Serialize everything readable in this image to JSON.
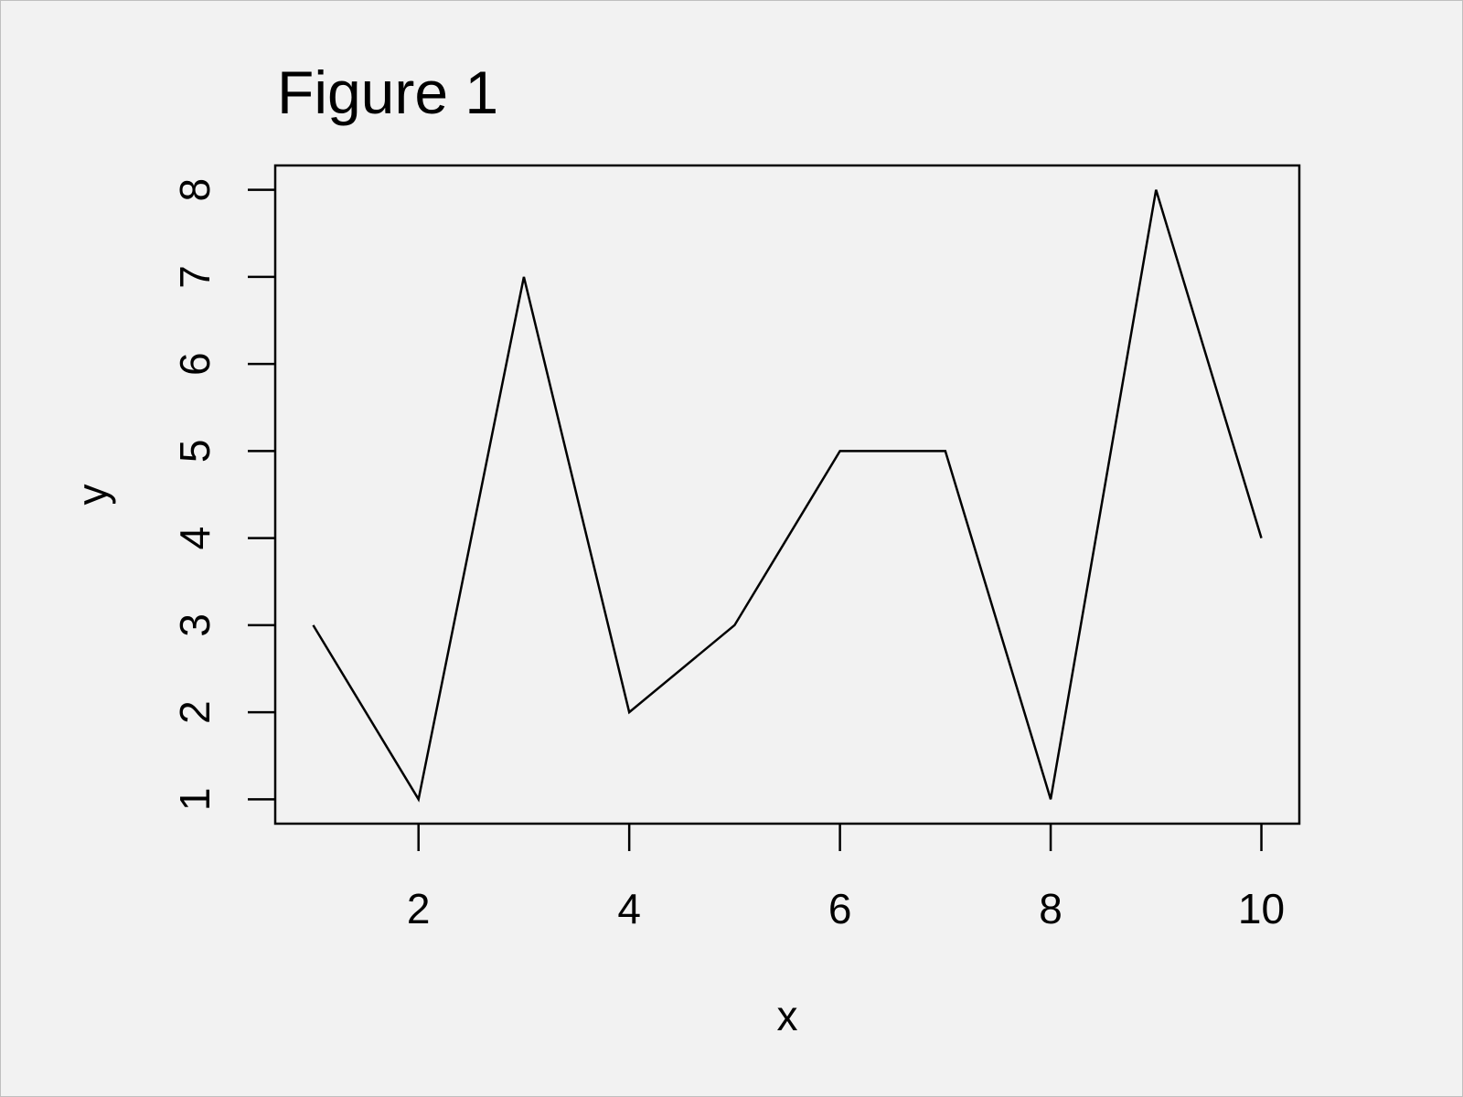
{
  "chart_data": {
    "type": "line",
    "title": "Figure 1",
    "xlabel": "x",
    "ylabel": "y",
    "x": [
      1,
      2,
      3,
      4,
      5,
      6,
      7,
      8,
      9,
      10
    ],
    "series": [
      {
        "values": [
          3,
          1,
          7,
          2,
          3,
          5,
          5,
          1,
          8,
          4
        ]
      }
    ],
    "xlim": [
      0.64,
      10.36
    ],
    "ylim": [
      0.72,
      8.28
    ],
    "xticks": [
      2,
      4,
      6,
      8,
      10
    ],
    "yticks": [
      1,
      2,
      3,
      4,
      5,
      6,
      7,
      8
    ],
    "grid": false,
    "legend": "none",
    "colors": {
      "background": "#f2f2f2",
      "line": "#000000",
      "border": "#bfbfbf"
    }
  }
}
